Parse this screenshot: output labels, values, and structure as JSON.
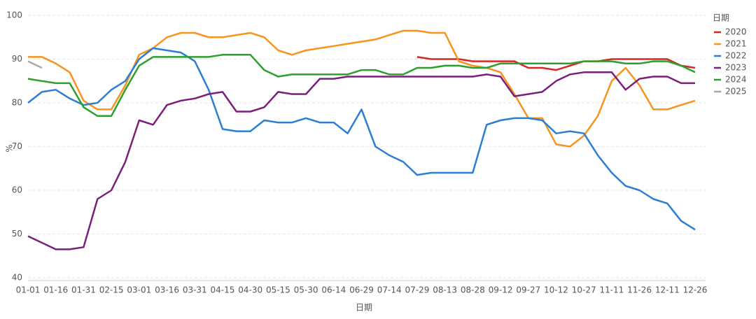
{
  "chart_data": {
    "type": "line",
    "x_label": "日期",
    "y_label": "%",
    "legend_title": "日期",
    "legend_position": "right",
    "categories": [
      "01-01",
      null,
      "01-16",
      null,
      "01-31",
      null,
      "02-15",
      null,
      "03-01",
      null,
      "03-16",
      null,
      "03-31",
      null,
      "04-15",
      null,
      "04-30",
      null,
      "05-15",
      null,
      "05-30",
      null,
      "06-14",
      null,
      "06-29",
      null,
      "07-14",
      null,
      "07-29",
      null,
      "08-13",
      null,
      "08-28",
      null,
      "09-12",
      null,
      "09-27",
      null,
      "10-12",
      null,
      "10-27",
      null,
      "11-11",
      null,
      "11-26",
      null,
      "12-11",
      null,
      "12-26"
    ],
    "ylim": [
      40,
      100
    ],
    "yticks": [
      40,
      50,
      60,
      70,
      80,
      90,
      100
    ],
    "grid": true,
    "series": [
      {
        "name": "2020",
        "color": "#d62728",
        "values": [
          null,
          null,
          null,
          null,
          null,
          null,
          null,
          null,
          null,
          null,
          null,
          null,
          null,
          null,
          null,
          null,
          null,
          null,
          null,
          null,
          null,
          null,
          null,
          null,
          null,
          null,
          null,
          null,
          90.5,
          90,
          90,
          90,
          89.5,
          89.5,
          89.5,
          89.5,
          88,
          88,
          87.5,
          88.5,
          89.5,
          89.5,
          90,
          90,
          90,
          90,
          90,
          88.5,
          88
        ]
      },
      {
        "name": "2021",
        "color": "#f7941d",
        "values": [
          90.5,
          90.5,
          89,
          87,
          80.5,
          78.5,
          78.5,
          84,
          91,
          92.5,
          95,
          96,
          96,
          95,
          95,
          95.5,
          96,
          95,
          92,
          91,
          92,
          92.5,
          93,
          93.5,
          94,
          94.5,
          95.5,
          96.5,
          96.5,
          96,
          96,
          89.5,
          88.5,
          88,
          87,
          82,
          76.5,
          76.5,
          70.5,
          70,
          72.5,
          77,
          85,
          88,
          84,
          78.5,
          78.5,
          79.5,
          80.5
        ]
      },
      {
        "name": "2022",
        "color": "#2a7fd4",
        "values": [
          80,
          82.5,
          83,
          81,
          79.5,
          80,
          83,
          85,
          90,
          92.5,
          92,
          91.5,
          89.5,
          83,
          74,
          73.5,
          73.5,
          76,
          75.5,
          75.5,
          76.5,
          75.5,
          75.5,
          73,
          78.5,
          70,
          68,
          66.5,
          63.5,
          64,
          64,
          64,
          64,
          75,
          76,
          76.5,
          76.5,
          76,
          73,
          73.5,
          73,
          68,
          64,
          61,
          60,
          58,
          57,
          53,
          51
        ]
      },
      {
        "name": "2023",
        "color": "#7b1f7c",
        "values": [
          49.5,
          48,
          46.5,
          46.5,
          47,
          58,
          60,
          66.5,
          76,
          75,
          79.5,
          80.5,
          81,
          82,
          82.5,
          78,
          78,
          79,
          82.5,
          82,
          82,
          85.5,
          85.5,
          86,
          86,
          86,
          86,
          86,
          86,
          86,
          86,
          86,
          86,
          86.5,
          86,
          81.5,
          82,
          82.5,
          85,
          86.5,
          87,
          87,
          87,
          83,
          85.5,
          86,
          86,
          84.5,
          84.5
        ]
      },
      {
        "name": "2024",
        "color": "#2ca02c",
        "values": [
          85.5,
          85,
          84.5,
          84.5,
          79,
          77,
          77,
          83,
          88.5,
          90.5,
          90.5,
          90.5,
          90.5,
          90.5,
          91,
          91,
          91,
          87.5,
          86,
          86.5,
          86.5,
          86.5,
          86.5,
          86.5,
          87.5,
          87.5,
          86.5,
          86.5,
          88,
          88,
          88.5,
          88.5,
          88,
          88,
          89,
          89,
          89,
          89,
          89,
          89,
          89.5,
          89.5,
          89.5,
          89,
          89,
          89.5,
          89.5,
          88.5,
          87
        ]
      },
      {
        "name": "2025",
        "color": "#a7a7a7",
        "values": [
          89.5,
          88,
          null,
          null,
          null,
          null,
          null,
          null,
          null,
          null,
          null,
          null,
          null,
          null,
          null,
          null,
          null,
          null,
          null,
          null,
          null,
          null,
          null,
          null,
          null,
          null,
          null,
          null,
          null,
          null,
          null,
          null,
          null,
          null,
          null,
          null,
          null,
          null,
          null,
          null,
          null,
          null,
          null,
          null,
          null,
          null,
          null,
          null,
          null
        ]
      }
    ]
  }
}
